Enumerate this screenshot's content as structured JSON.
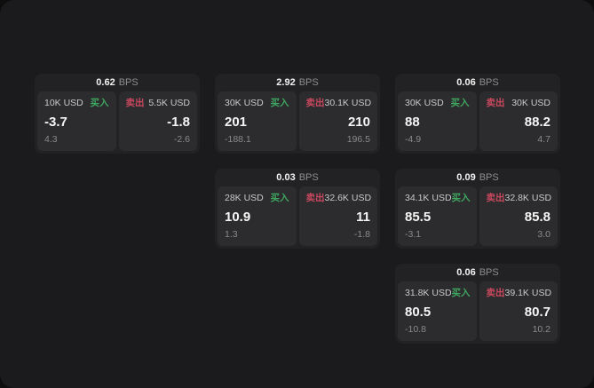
{
  "labels": {
    "buy": "买入",
    "sell": "卖出",
    "bps": "BPS"
  },
  "colors": {
    "buy": "#3fa660",
    "sell": "#c9485f",
    "card_bg": "#222224",
    "tile_bg": "#2c2c2e",
    "panel_bg": "#1b1b1d",
    "page_bg": "#0e0e0f"
  },
  "cards": [
    {
      "bps": "0.62",
      "buy": {
        "amount": "10K USD",
        "value": "-3.7",
        "sub": "4.3"
      },
      "sell": {
        "amount": "5.5K USD",
        "value": "-1.8",
        "sub": "-2.6"
      }
    },
    {
      "bps": "2.92",
      "buy": {
        "amount": "30K USD",
        "value": "201",
        "sub": "-188.1"
      },
      "sell": {
        "amount": "30.1K USD",
        "value": "210",
        "sub": "196.5"
      }
    },
    {
      "bps": "0.06",
      "buy": {
        "amount": "30K USD",
        "value": "88",
        "sub": "-4.9"
      },
      "sell": {
        "amount": "30K USD",
        "value": "88.2",
        "sub": "4.7"
      }
    },
    {
      "bps": "0.03",
      "buy": {
        "amount": "28K USD",
        "value": "10.9",
        "sub": "1.3"
      },
      "sell": {
        "amount": "32.6K USD",
        "value": "11",
        "sub": "-1.8"
      }
    },
    {
      "bps": "0.09",
      "buy": {
        "amount": "34.1K USD",
        "value": "85.5",
        "sub": "-3.1"
      },
      "sell": {
        "amount": "32.8K USD",
        "value": "85.8",
        "sub": "3.0"
      }
    },
    {
      "bps": "0.06",
      "buy": {
        "amount": "31.8K USD",
        "value": "80.5",
        "sub": "-10.8"
      },
      "sell": {
        "amount": "39.1K USD",
        "value": "80.7",
        "sub": "10.2"
      }
    }
  ]
}
